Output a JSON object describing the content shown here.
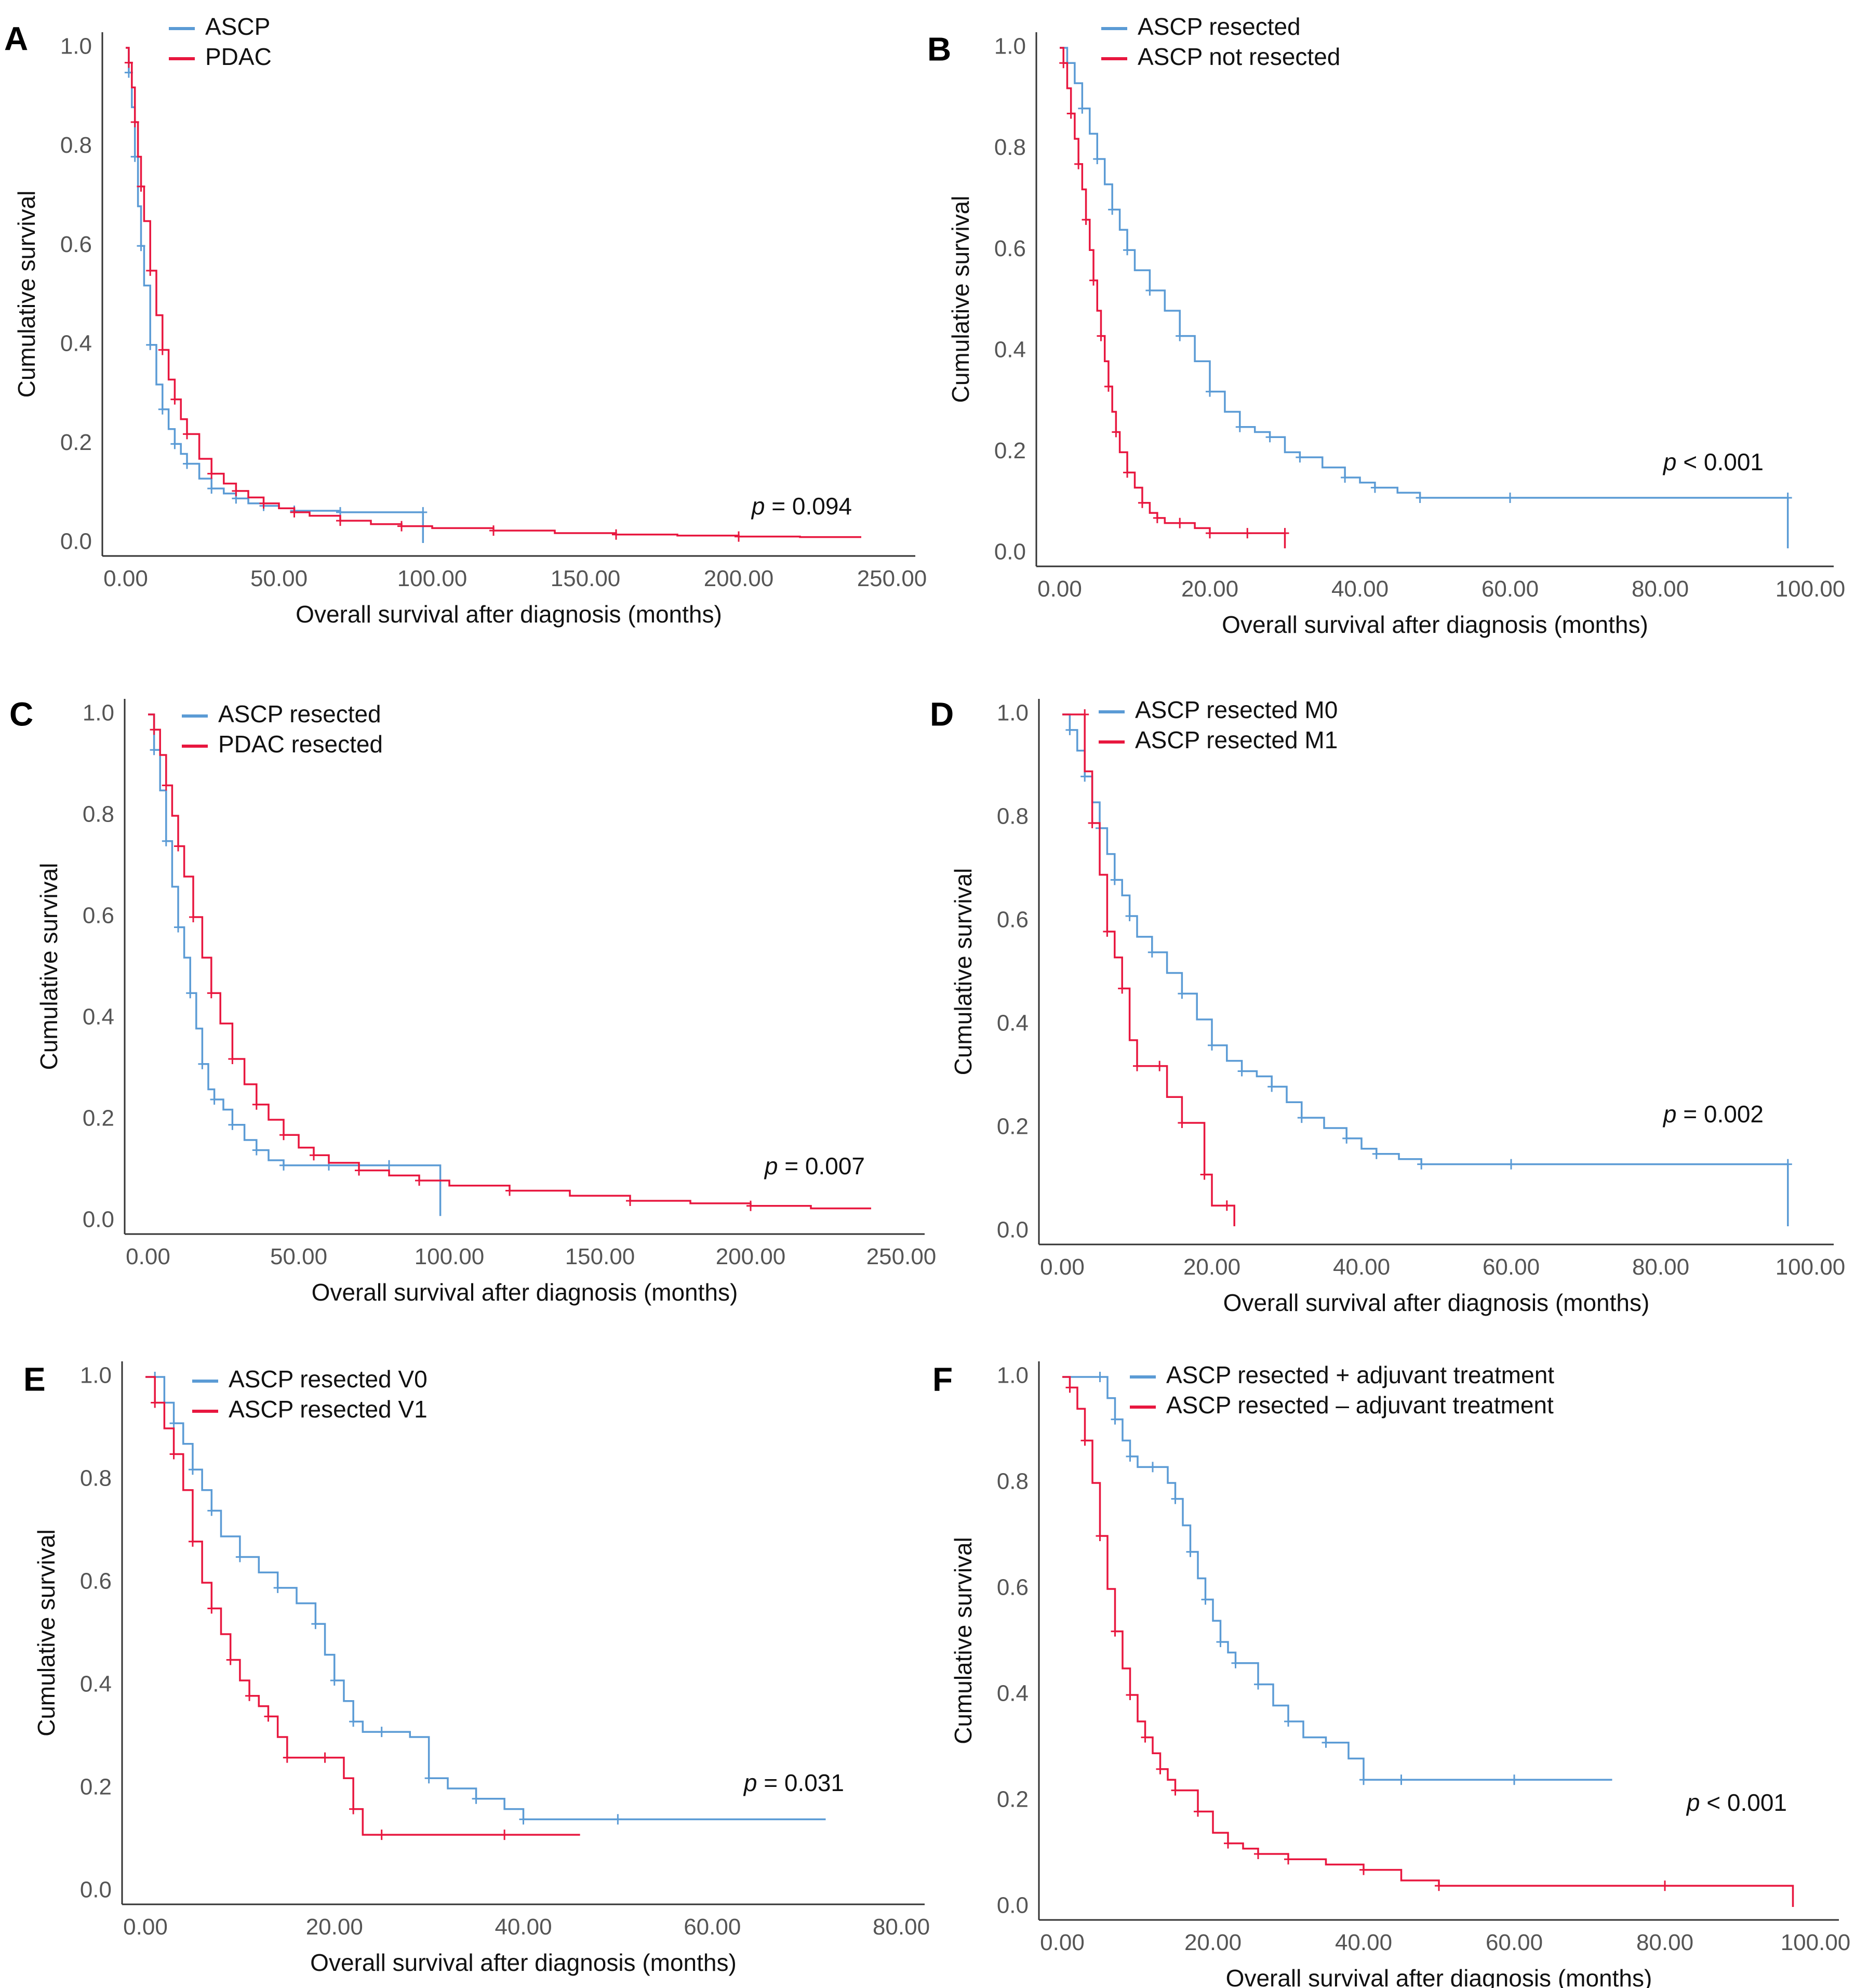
{
  "chart_data": [
    {
      "panel": "A",
      "type": "line",
      "xlabel": "Overall survival after diagnosis (months)",
      "ylabel": "Cumulative survival",
      "xlim": [
        0,
        250
      ],
      "ylim": [
        0,
        1
      ],
      "xticks": [
        "0.00",
        "50.00",
        "100.00",
        "150.00",
        "200.00",
        "250.00"
      ],
      "yticks": [
        "0.0",
        "0.2",
        "0.4",
        "0.6",
        "0.8",
        "1.0"
      ],
      "pvalue": "= 0.094",
      "series": [
        {
          "name": "ASCP",
          "color": "#5b9bd5",
          "x": [
            0,
            1,
            2,
            3,
            4,
            5,
            6,
            8,
            10,
            12,
            14,
            16,
            18,
            20,
            24,
            28,
            32,
            36,
            40,
            45,
            50,
            55,
            60,
            70,
            80,
            97,
            97
          ],
          "y": [
            1.0,
            0.95,
            0.88,
            0.78,
            0.68,
            0.6,
            0.52,
            0.4,
            0.32,
            0.27,
            0.23,
            0.2,
            0.18,
            0.16,
            0.13,
            0.11,
            0.1,
            0.09,
            0.08,
            0.075,
            0.07,
            0.065,
            0.065,
            0.062,
            0.062,
            0.062,
            0.0
          ]
        },
        {
          "name": "PDAC",
          "color": "#e8173f",
          "x": [
            0,
            1,
            2,
            3,
            4,
            5,
            6,
            8,
            10,
            12,
            14,
            16,
            18,
            20,
            24,
            28,
            32,
            36,
            40,
            45,
            50,
            55,
            60,
            70,
            80,
            90,
            100,
            120,
            140,
            160,
            180,
            200,
            220,
            240
          ],
          "y": [
            1.0,
            0.97,
            0.92,
            0.85,
            0.78,
            0.72,
            0.65,
            0.55,
            0.46,
            0.39,
            0.33,
            0.29,
            0.25,
            0.22,
            0.17,
            0.14,
            0.12,
            0.105,
            0.092,
            0.08,
            0.07,
            0.062,
            0.055,
            0.045,
            0.038,
            0.034,
            0.03,
            0.025,
            0.02,
            0.017,
            0.015,
            0.013,
            0.012,
            0.012
          ]
        }
      ]
    },
    {
      "panel": "B",
      "type": "line",
      "xlabel": "Overall survival after diagnosis (months)",
      "ylabel": "Cumulative survival",
      "xlim": [
        0,
        100
      ],
      "ylim": [
        0,
        1
      ],
      "xticks": [
        "0.00",
        "20.00",
        "40.00",
        "60.00",
        "80.00",
        "100.00"
      ],
      "yticks": [
        "0.0",
        "0.2",
        "0.4",
        "0.6",
        "0.8",
        "1.0"
      ],
      "pvalue": "< 0.001",
      "series": [
        {
          "name": "ASCP resected",
          "color": "#5b9bd5",
          "x": [
            0,
            1,
            2,
            3,
            4,
            5,
            6,
            7,
            8,
            9,
            10,
            12,
            14,
            16,
            18,
            20,
            22,
            24,
            26,
            28,
            30,
            32,
            35,
            38,
            40,
            42,
            45,
            48,
            50,
            60,
            73,
            97,
            97
          ],
          "y": [
            1.0,
            0.97,
            0.93,
            0.88,
            0.83,
            0.78,
            0.73,
            0.68,
            0.64,
            0.6,
            0.56,
            0.52,
            0.48,
            0.43,
            0.38,
            0.32,
            0.28,
            0.25,
            0.24,
            0.23,
            0.2,
            0.19,
            0.17,
            0.15,
            0.14,
            0.13,
            0.12,
            0.11,
            0.11,
            0.11,
            0.11,
            0.11,
            0.01
          ]
        },
        {
          "name": "ASCP not resected",
          "color": "#e8173f",
          "x": [
            0,
            0.5,
            1,
            1.5,
            2,
            2.5,
            3,
            3.5,
            4,
            4.5,
            5,
            5.5,
            6,
            6.5,
            7,
            7.5,
            8,
            9,
            10,
            11,
            12,
            13,
            14,
            16,
            18,
            20,
            22,
            25,
            28,
            30,
            30
          ],
          "y": [
            1.0,
            0.97,
            0.92,
            0.87,
            0.82,
            0.77,
            0.72,
            0.66,
            0.6,
            0.54,
            0.48,
            0.43,
            0.38,
            0.33,
            0.28,
            0.24,
            0.2,
            0.16,
            0.13,
            0.1,
            0.08,
            0.07,
            0.06,
            0.06,
            0.05,
            0.04,
            0.04,
            0.04,
            0.04,
            0.04,
            0.01
          ]
        }
      ]
    },
    {
      "panel": "C",
      "type": "line",
      "xlabel": "Overall survival after diagnosis (months)",
      "ylabel": "Cumulative survival",
      "xlim": [
        0,
        250
      ],
      "ylim": [
        0,
        1
      ],
      "xticks": [
        "0.00",
        "50.00",
        "100.00",
        "150.00",
        "200.00",
        "250.00"
      ],
      "yticks": [
        "0.0",
        "0.2",
        "0.4",
        "0.6",
        "0.8",
        "1.0"
      ],
      "pvalue": "= 0.007",
      "series": [
        {
          "name": "ASCP resected",
          "color": "#5b9bd5",
          "x": [
            0,
            2,
            4,
            6,
            8,
            10,
            12,
            14,
            16,
            18,
            20,
            22,
            25,
            28,
            32,
            36,
            40,
            45,
            50,
            60,
            70,
            80,
            97,
            97
          ],
          "y": [
            1.0,
            0.93,
            0.85,
            0.75,
            0.66,
            0.58,
            0.52,
            0.45,
            0.38,
            0.31,
            0.26,
            0.24,
            0.22,
            0.19,
            0.16,
            0.14,
            0.12,
            0.11,
            0.11,
            0.11,
            0.11,
            0.11,
            0.11,
            0.01
          ]
        },
        {
          "name": "PDAC resected",
          "color": "#e8173f",
          "x": [
            0,
            2,
            4,
            6,
            8,
            10,
            12,
            15,
            18,
            21,
            24,
            28,
            32,
            36,
            40,
            45,
            50,
            55,
            60,
            70,
            80,
            90,
            100,
            120,
            140,
            160,
            180,
            200,
            220,
            240
          ],
          "y": [
            1.0,
            0.97,
            0.92,
            0.86,
            0.8,
            0.74,
            0.68,
            0.6,
            0.52,
            0.45,
            0.39,
            0.32,
            0.27,
            0.23,
            0.2,
            0.17,
            0.145,
            0.13,
            0.115,
            0.1,
            0.09,
            0.08,
            0.07,
            0.06,
            0.05,
            0.04,
            0.035,
            0.03,
            0.025,
            0.025
          ]
        }
      ]
    },
    {
      "panel": "D",
      "type": "line",
      "xlabel": "Overall survival after diagnosis (months)",
      "ylabel": "Cumulative survival",
      "xlim": [
        0,
        100
      ],
      "ylim": [
        0,
        1
      ],
      "xticks": [
        "0.00",
        "20.00",
        "40.00",
        "60.00",
        "80.00",
        "100.00"
      ],
      "yticks": [
        "0.0",
        "0.2",
        "0.4",
        "0.6",
        "0.8",
        "1.0"
      ],
      "pvalue": "= 0.002",
      "series": [
        {
          "name": "ASCP resected M0",
          "color": "#5b9bd5",
          "x": [
            0,
            1,
            2,
            3,
            4,
            5,
            6,
            7,
            8,
            9,
            10,
            12,
            14,
            16,
            18,
            20,
            22,
            24,
            26,
            28,
            30,
            32,
            35,
            38,
            40,
            42,
            45,
            48,
            50,
            60,
            73,
            97,
            97
          ],
          "y": [
            1.0,
            0.97,
            0.93,
            0.88,
            0.83,
            0.78,
            0.73,
            0.68,
            0.65,
            0.61,
            0.57,
            0.54,
            0.5,
            0.46,
            0.41,
            0.36,
            0.33,
            0.31,
            0.3,
            0.28,
            0.25,
            0.22,
            0.2,
            0.18,
            0.16,
            0.15,
            0.14,
            0.13,
            0.13,
            0.13,
            0.13,
            0.13,
            0.01
          ]
        },
        {
          "name": "ASCP resected M1",
          "color": "#e8173f",
          "x": [
            0,
            3,
            3,
            4,
            5,
            6,
            7,
            8,
            9,
            10,
            12,
            13,
            14,
            16,
            18,
            19,
            20,
            22,
            23,
            23
          ],
          "y": [
            1.0,
            1.0,
            0.89,
            0.79,
            0.69,
            0.58,
            0.53,
            0.47,
            0.37,
            0.32,
            0.32,
            0.32,
            0.26,
            0.21,
            0.21,
            0.11,
            0.05,
            0.05,
            0.05,
            0.01
          ]
        }
      ]
    },
    {
      "panel": "E",
      "type": "line",
      "xlabel": "Overall survival after diagnosis (months)",
      "ylabel": "Cumulative survival",
      "xlim": [
        0,
        80
      ],
      "ylim": [
        0,
        1
      ],
      "xticks": [
        "0.00",
        "20.00",
        "40.00",
        "60.00",
        "80.00"
      ],
      "yticks": [
        "0.0",
        "0.2",
        "0.4",
        "0.6",
        "0.8",
        "1.0"
      ],
      "pvalue": "= 0.031",
      "series": [
        {
          "name": "ASCP resected V0",
          "color": "#5b9bd5",
          "x": [
            0,
            1,
            2,
            3,
            4,
            5,
            6,
            7,
            8,
            10,
            12,
            14,
            16,
            18,
            19,
            20,
            21,
            22,
            23,
            25,
            28,
            30,
            32,
            35,
            38,
            40,
            45,
            50,
            60,
            72
          ],
          "y": [
            1.0,
            1.0,
            0.95,
            0.91,
            0.87,
            0.82,
            0.78,
            0.74,
            0.69,
            0.65,
            0.62,
            0.59,
            0.56,
            0.52,
            0.46,
            0.41,
            0.37,
            0.33,
            0.31,
            0.31,
            0.3,
            0.22,
            0.2,
            0.18,
            0.16,
            0.14,
            0.14,
            0.14,
            0.14,
            0.14
          ]
        },
        {
          "name": "ASCP resected V1",
          "color": "#e8173f",
          "x": [
            0,
            1,
            2,
            3,
            4,
            5,
            6,
            7,
            8,
            9,
            10,
            11,
            12,
            13,
            14,
            15,
            17,
            19,
            21,
            22,
            23,
            25,
            30,
            38,
            46
          ],
          "y": [
            1.0,
            0.95,
            0.9,
            0.85,
            0.78,
            0.68,
            0.6,
            0.55,
            0.5,
            0.45,
            0.41,
            0.38,
            0.36,
            0.34,
            0.3,
            0.26,
            0.26,
            0.26,
            0.22,
            0.16,
            0.11,
            0.11,
            0.11,
            0.11,
            0.11
          ]
        }
      ]
    },
    {
      "panel": "F",
      "type": "line",
      "xlabel": "Overall survival after diagnosis (months)",
      "ylabel": "Cumulative survival",
      "xlim": [
        0,
        100
      ],
      "ylim": [
        0,
        1
      ],
      "xticks": [
        "0.00",
        "20.00",
        "40.00",
        "60.00",
        "80.00",
        "100.00"
      ],
      "yticks": [
        "0.0",
        "0.2",
        "0.4",
        "0.6",
        "0.8",
        "1.0"
      ],
      "pvalue": "< 0.001",
      "series": [
        {
          "name": "ASCP resected + adjuvant treatment",
          "color": "#5b9bd5",
          "x": [
            0,
            5,
            6,
            7,
            8,
            9,
            10,
            12,
            14,
            15,
            16,
            17,
            18,
            19,
            20,
            21,
            22,
            23,
            24,
            26,
            28,
            30,
            32,
            35,
            38,
            40,
            42,
            45,
            50,
            60,
            73
          ],
          "y": [
            1.0,
            1.0,
            0.96,
            0.92,
            0.88,
            0.85,
            0.83,
            0.83,
            0.8,
            0.77,
            0.72,
            0.67,
            0.62,
            0.58,
            0.54,
            0.5,
            0.48,
            0.46,
            0.46,
            0.42,
            0.38,
            0.35,
            0.32,
            0.31,
            0.28,
            0.24,
            0.24,
            0.24,
            0.24,
            0.24,
            0.24
          ]
        },
        {
          "name": "ASCP resected – adjuvant treatment",
          "color": "#e8173f",
          "x": [
            0,
            1,
            2,
            3,
            4,
            5,
            6,
            7,
            8,
            9,
            10,
            11,
            12,
            13,
            14,
            15,
            16,
            18,
            20,
            22,
            24,
            26,
            28,
            30,
            35,
            40,
            45,
            50,
            60,
            80,
            97,
            97
          ],
          "y": [
            1.0,
            0.98,
            0.94,
            0.88,
            0.8,
            0.7,
            0.6,
            0.52,
            0.45,
            0.4,
            0.35,
            0.32,
            0.29,
            0.26,
            0.24,
            0.22,
            0.22,
            0.18,
            0.14,
            0.12,
            0.11,
            0.1,
            0.1,
            0.09,
            0.08,
            0.07,
            0.05,
            0.04,
            0.04,
            0.04,
            0.04,
            0.0
          ]
        }
      ]
    }
  ]
}
